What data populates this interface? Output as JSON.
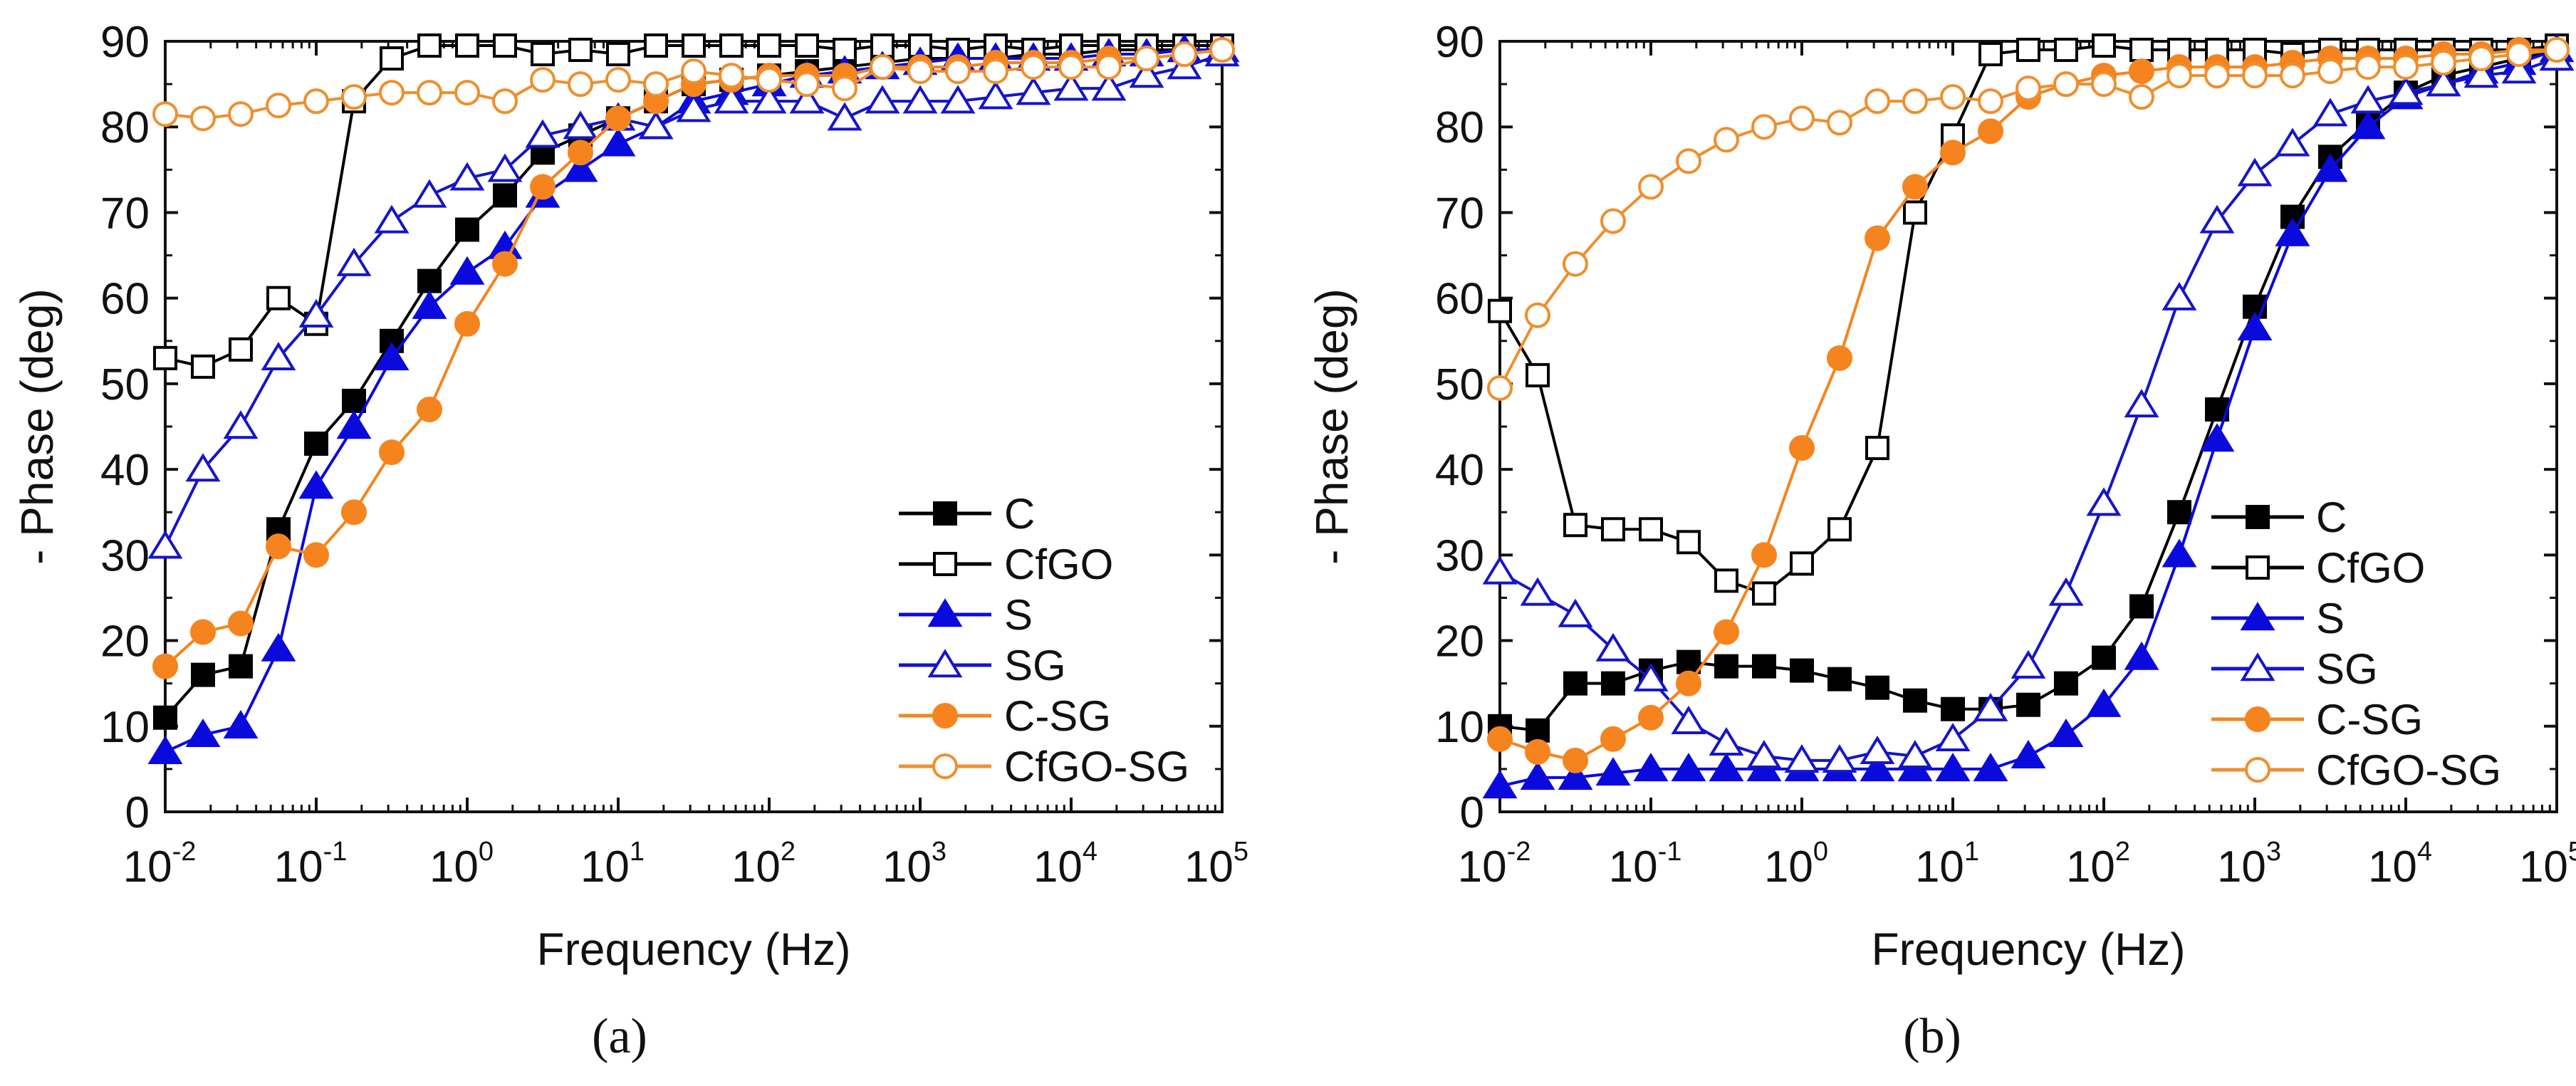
{
  "colors": {
    "C": "#000000",
    "CfGO": "#000000",
    "S": "#0a0adc",
    "SG": "#1515c8",
    "C-SG": "#f5841f",
    "CfGO-SG": "#ef8f2e"
  },
  "chart_data": [
    {
      "type": "line",
      "caption": "(a)",
      "xlabel": "Frequency (Hz)",
      "ylabel": "- Phase (deg)",
      "xscale": "log",
      "xlim": [
        0.01,
        100000
      ],
      "ylim": [
        0,
        90
      ],
      "yticks": [
        "0",
        "10",
        "20",
        "30",
        "40",
        "50",
        "60",
        "70",
        "80",
        "90"
      ],
      "xtick_base": "10",
      "xtick_exponents": [
        "-2",
        "-1",
        "0",
        "1",
        "2",
        "3",
        "4",
        "5"
      ],
      "legend_position": "bottom-right",
      "x_log10_start": -2,
      "x_log10_step": 0.25,
      "series": [
        {
          "name": "C",
          "marker": "square-filled",
          "values": [
            11,
            16,
            17,
            33,
            43,
            48,
            55,
            62,
            68,
            72,
            77,
            79,
            81,
            83,
            85,
            85.5,
            86,
            86.5,
            87,
            87.5,
            88,
            88,
            88,
            88.5,
            88.5,
            89,
            89,
            89,
            89
          ]
        },
        {
          "name": "CfGO",
          "marker": "square-open",
          "values": [
            53,
            52,
            54,
            60,
            57,
            83,
            88,
            89.5,
            89.5,
            89.5,
            88.5,
            89,
            88.5,
            89.5,
            89.5,
            89.5,
            89.5,
            89.5,
            89,
            89.5,
            89.5,
            89,
            89.5,
            89,
            89.5,
            89.5,
            89.5,
            89.5,
            89.5
          ]
        },
        {
          "name": "S",
          "marker": "triangle-filled",
          "values": [
            7,
            9,
            10,
            19,
            38,
            45,
            53,
            59,
            63,
            66,
            72,
            75,
            78,
            80,
            83,
            84,
            85,
            86,
            86.5,
            87,
            87.5,
            88,
            88,
            88,
            88,
            88.5,
            88.5,
            89,
            89
          ]
        },
        {
          "name": "SG",
          "marker": "triangle-open",
          "values": [
            31,
            40,
            45,
            53,
            58,
            64,
            69,
            72,
            74,
            75,
            79,
            80,
            81,
            80,
            82,
            83,
            83,
            83,
            81,
            83,
            83,
            83,
            83.5,
            84,
            84.5,
            84.5,
            86,
            87,
            88.5
          ]
        },
        {
          "name": "C-SG",
          "marker": "circle-filled",
          "values": [
            17,
            21,
            22,
            31,
            30,
            35,
            42,
            47,
            57,
            64,
            73,
            77,
            81,
            83,
            85,
            85.5,
            86,
            86,
            86,
            87,
            87,
            87,
            87.5,
            87.5,
            87.5,
            88,
            88,
            88.5,
            89
          ]
        },
        {
          "name": "CfGO-SG",
          "marker": "circle-open",
          "values": [
            81.5,
            81,
            81.5,
            82.5,
            83,
            83.5,
            84,
            84,
            84,
            83,
            85.5,
            85,
            85.5,
            85,
            86.5,
            86,
            85.5,
            85,
            84.5,
            87,
            86.5,
            86.5,
            86.5,
            87,
            87,
            87,
            88,
            88.5,
            89
          ]
        }
      ]
    },
    {
      "type": "line",
      "caption": "(b)",
      "xlabel": "Frequency (Hz)",
      "ylabel": "- Phase (deg)",
      "xscale": "log",
      "xlim": [
        0.01,
        100000
      ],
      "ylim": [
        0,
        90
      ],
      "yticks": [
        "0",
        "10",
        "20",
        "30",
        "40",
        "50",
        "60",
        "70",
        "80",
        "90"
      ],
      "xtick_base": "10",
      "xtick_exponents": [
        "-2",
        "-1",
        "0",
        "1",
        "2",
        "3",
        "4",
        "5"
      ],
      "legend_position": "bottom-right",
      "x_log10_start": -2,
      "x_log10_step": 0.25,
      "series": [
        {
          "name": "C",
          "marker": "square-filled",
          "values": [
            10,
            9.5,
            15,
            15,
            16.5,
            17.5,
            17,
            17,
            16.5,
            15.5,
            14.5,
            13,
            12,
            12,
            12.5,
            15,
            18,
            24,
            35,
            47,
            59,
            69.5,
            76.5,
            80.5,
            84,
            86,
            87,
            88,
            89
          ]
        },
        {
          "name": "CfGO",
          "marker": "square-open",
          "values": [
            58.5,
            51,
            33.5,
            33,
            33,
            31.5,
            27,
            25.5,
            29,
            33,
            42.5,
            70,
            79,
            88.5,
            89,
            89,
            89.5,
            89,
            89,
            89,
            89,
            88.5,
            89,
            89,
            89,
            89,
            89,
            89,
            89.5
          ]
        },
        {
          "name": "S",
          "marker": "triangle-filled",
          "values": [
            3,
            4,
            4,
            4.5,
            5,
            5,
            5,
            5,
            5,
            5,
            5,
            5,
            5,
            5,
            6.5,
            9,
            12.5,
            18,
            30,
            43.5,
            56.5,
            67.5,
            75,
            80,
            83.5,
            85,
            86.5,
            87.5,
            89
          ]
        },
        {
          "name": "SG",
          "marker": "triangle-open",
          "values": [
            28,
            25.5,
            23,
            19,
            15.5,
            10.5,
            8,
            6.5,
            6,
            6,
            7,
            6.5,
            8.5,
            12,
            17,
            25.5,
            36,
            47.5,
            60,
            69,
            74.5,
            78,
            81.5,
            83,
            84,
            85,
            86,
            86.5,
            88
          ]
        },
        {
          "name": "C-SG",
          "marker": "circle-filled",
          "values": [
            8.5,
            7,
            6,
            8.5,
            11,
            15,
            21,
            30,
            42.5,
            53,
            67,
            73,
            77,
            79.5,
            83.5,
            85,
            86,
            86.5,
            87,
            87,
            87,
            87.5,
            88,
            88,
            88,
            88.5,
            88.5,
            89,
            89
          ]
        },
        {
          "name": "CfGO-SG",
          "marker": "circle-open",
          "values": [
            49.5,
            58,
            64,
            69,
            73,
            76,
            78.5,
            80,
            81,
            80.5,
            83,
            83,
            83.5,
            83,
            84.5,
            85,
            85,
            83.5,
            86,
            86,
            86,
            86,
            86.5,
            87,
            87,
            87.5,
            88,
            88.5,
            89
          ]
        }
      ]
    }
  ]
}
